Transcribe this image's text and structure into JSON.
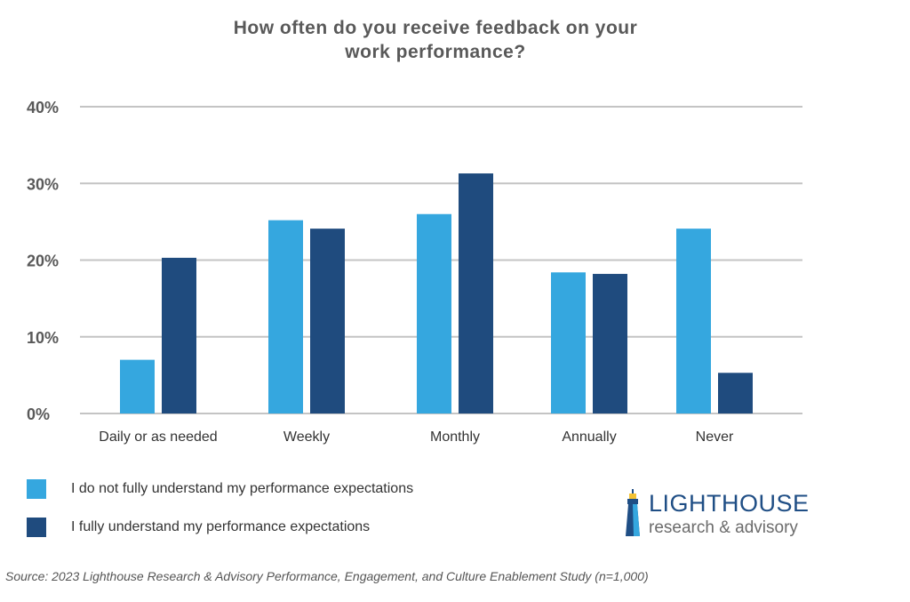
{
  "chart_data": {
    "type": "bar",
    "title": "How often do you receive feedback on your work performance?",
    "title_lines": [
      "How often do you receive feedback on your",
      "work performance?"
    ],
    "categories": [
      "Daily or as needed",
      "Weekly",
      "Monthly",
      "Annually",
      "Never"
    ],
    "series": [
      {
        "name": "I do not fully understand my performance expectations",
        "color": "#35a7df",
        "values": [
          7.0,
          25.2,
          26.0,
          18.4,
          24.1
        ]
      },
      {
        "name": "I fully understand my performance expectations",
        "color": "#1f4b7e",
        "values": [
          20.3,
          24.1,
          31.3,
          18.2,
          5.3
        ]
      }
    ],
    "ylim": [
      0,
      40
    ],
    "yticks": [
      "0%",
      "10%",
      "20%",
      "30%",
      "40%"
    ],
    "grid": true,
    "legend_position": "bottom-left"
  },
  "source": "Source: 2023 Lighthouse Research & Advisory Performance, Engagement, and Culture Enablement Study (n=1,000)",
  "logo": {
    "line1": "LIGHTHOUSE",
    "line2": "research & advisory"
  }
}
